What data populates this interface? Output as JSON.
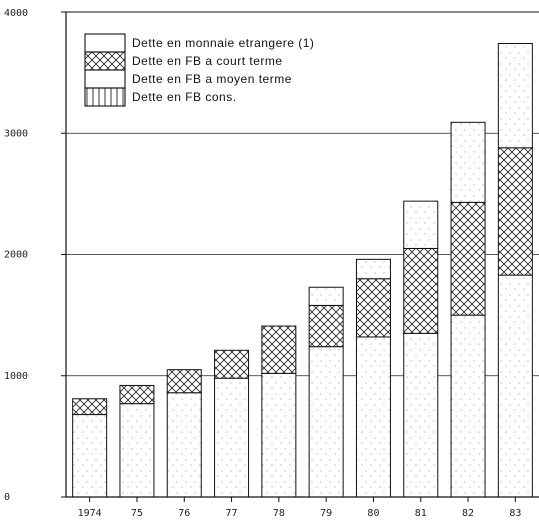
{
  "chart_data": {
    "type": "bar",
    "stacked": true,
    "categories": [
      "1974",
      "75",
      "76",
      "77",
      "78",
      "79",
      "80",
      "81",
      "82",
      "83"
    ],
    "series": [
      {
        "name": "Dette en FB cons.",
        "values": [
          0,
          0,
          0,
          0,
          0,
          0,
          0,
          0,
          0,
          0
        ]
      },
      {
        "name": "Dette en FB a moyen terme",
        "values": [
          680,
          770,
          860,
          980,
          1020,
          1240,
          1320,
          1350,
          1500,
          1830
        ]
      },
      {
        "name": "Dette en FB a court terme",
        "values": [
          130,
          150,
          190,
          230,
          390,
          340,
          480,
          700,
          930,
          1050
        ]
      },
      {
        "name": "Dette en monnaie etrangere (1)",
        "values": [
          0,
          0,
          0,
          0,
          0,
          150,
          160,
          390,
          660,
          860
        ]
      }
    ],
    "title": "",
    "xlabel": "",
    "ylabel": "",
    "ylim": [
      0,
      4000
    ],
    "yticks": [
      "0",
      "1000",
      "2000",
      "3000",
      "4000"
    ],
    "grid": true,
    "legend_position": "top-left"
  }
}
